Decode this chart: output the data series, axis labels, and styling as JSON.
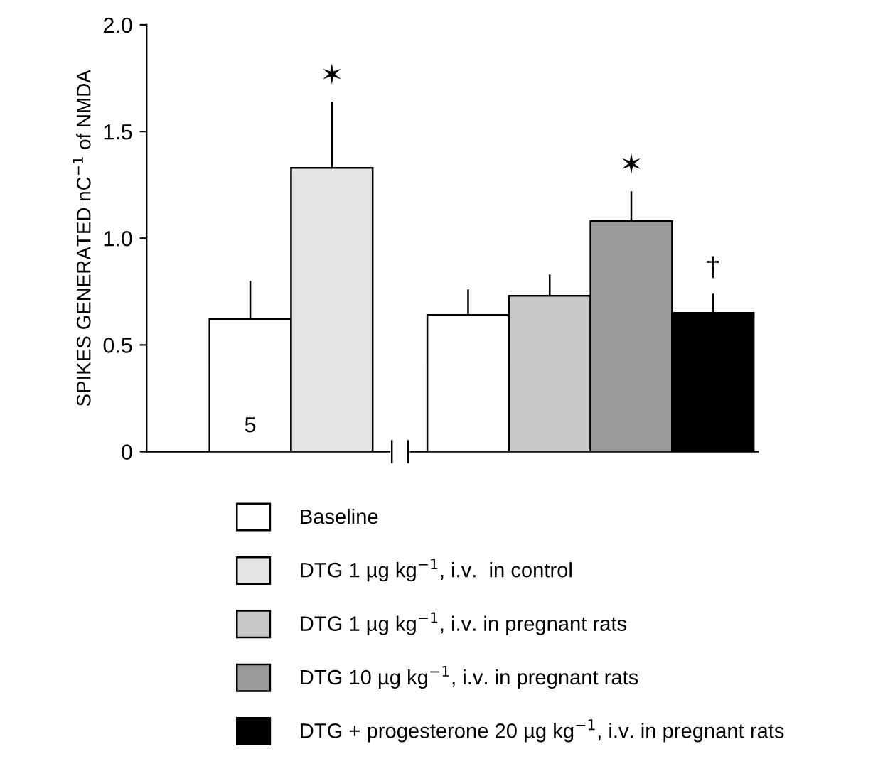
{
  "chart_data": {
    "type": "bar",
    "ylabel": "SPIKES GENERATED nC$^{−1}$ of NMDA",
    "categories": [
      null,
      null
    ],
    "series": [
      {
        "name": "Baseline",
        "color": "#ffffff",
        "values": [
          0.62,
          0.64
        ],
        "errors": [
          0.18,
          0.12
        ]
      },
      {
        "name": "DTG 1 µg kg$^{−1}$, i.v.  in control",
        "color": "#e4e4e4",
        "values": [
          1.33,
          null
        ],
        "errors": [
          0.31,
          null
        ]
      },
      {
        "name": "DTG 1 µg kg$^{−1}$, i.v. in pregnant rats",
        "color": "#c8c8c8",
        "values": [
          null,
          0.73
        ],
        "errors": [
          null,
          0.1
        ]
      },
      {
        "name": "DTG 10 µg kg$^{−1}$, i.v. in pregnant rats",
        "color": "#9a9a9a",
        "values": [
          null,
          1.08
        ],
        "errors": [
          null,
          0.14
        ]
      },
      {
        "name": "DTG + progesterone 20 µg kg$^{−1}$, i.v. in pregnant rats",
        "color": "#000000",
        "values": [
          null,
          0.65
        ],
        "errors": [
          null,
          0.09
        ]
      }
    ],
    "ylim": [
      0,
      2.0
    ],
    "yticks": [
      0,
      {
        "value": 0.5,
        "label": "0.5"
      },
      {
        "value": 1.0,
        "label": "1.0"
      },
      {
        "value": 1.5,
        "label": "1.5"
      },
      {
        "value": 2.0,
        "label": "2.0"
      }
    ],
    "annotations": [
      "5",
      "✶",
      "✶",
      "†"
    ],
    "legend": "bottom",
    "grid": false
  }
}
